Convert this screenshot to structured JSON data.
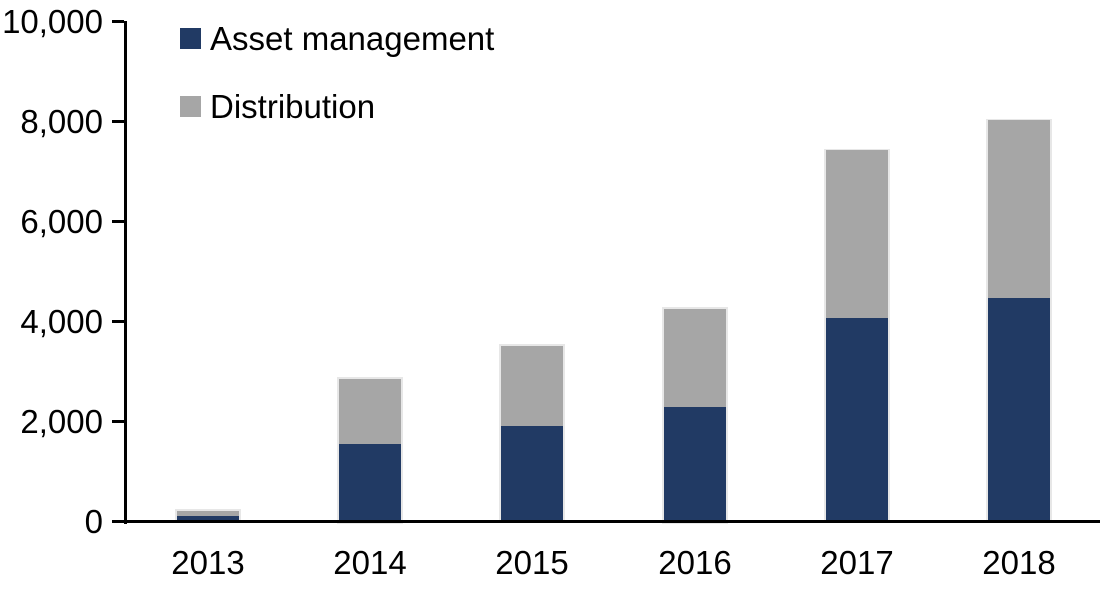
{
  "chart_data": {
    "type": "bar",
    "stacked": true,
    "categories": [
      "2013",
      "2014",
      "2015",
      "2016",
      "2017",
      "2018"
    ],
    "series": [
      {
        "name": "Asset management",
        "color": "#213A64",
        "values": [
          100,
          1550,
          1900,
          2300,
          4050,
          4450
        ]
      },
      {
        "name": "Distribution",
        "color": "#A6A6A6",
        "values": [
          100,
          1300,
          1600,
          1950,
          3350,
          3550
        ]
      }
    ],
    "totals": [
      200,
      2850,
      3500,
      4250,
      7400,
      8000
    ],
    "ylim": [
      0,
      10000
    ],
    "ytick_interval": 2000,
    "ytick_labels": [
      "0",
      "2,000",
      "4,000",
      "6,000",
      "8,000",
      "10,000"
    ],
    "legend_position": "top-left",
    "grid": false,
    "axis_color": "#000000",
    "bar_border_color": "#E7E7E7",
    "background": "#FFFFFF"
  }
}
